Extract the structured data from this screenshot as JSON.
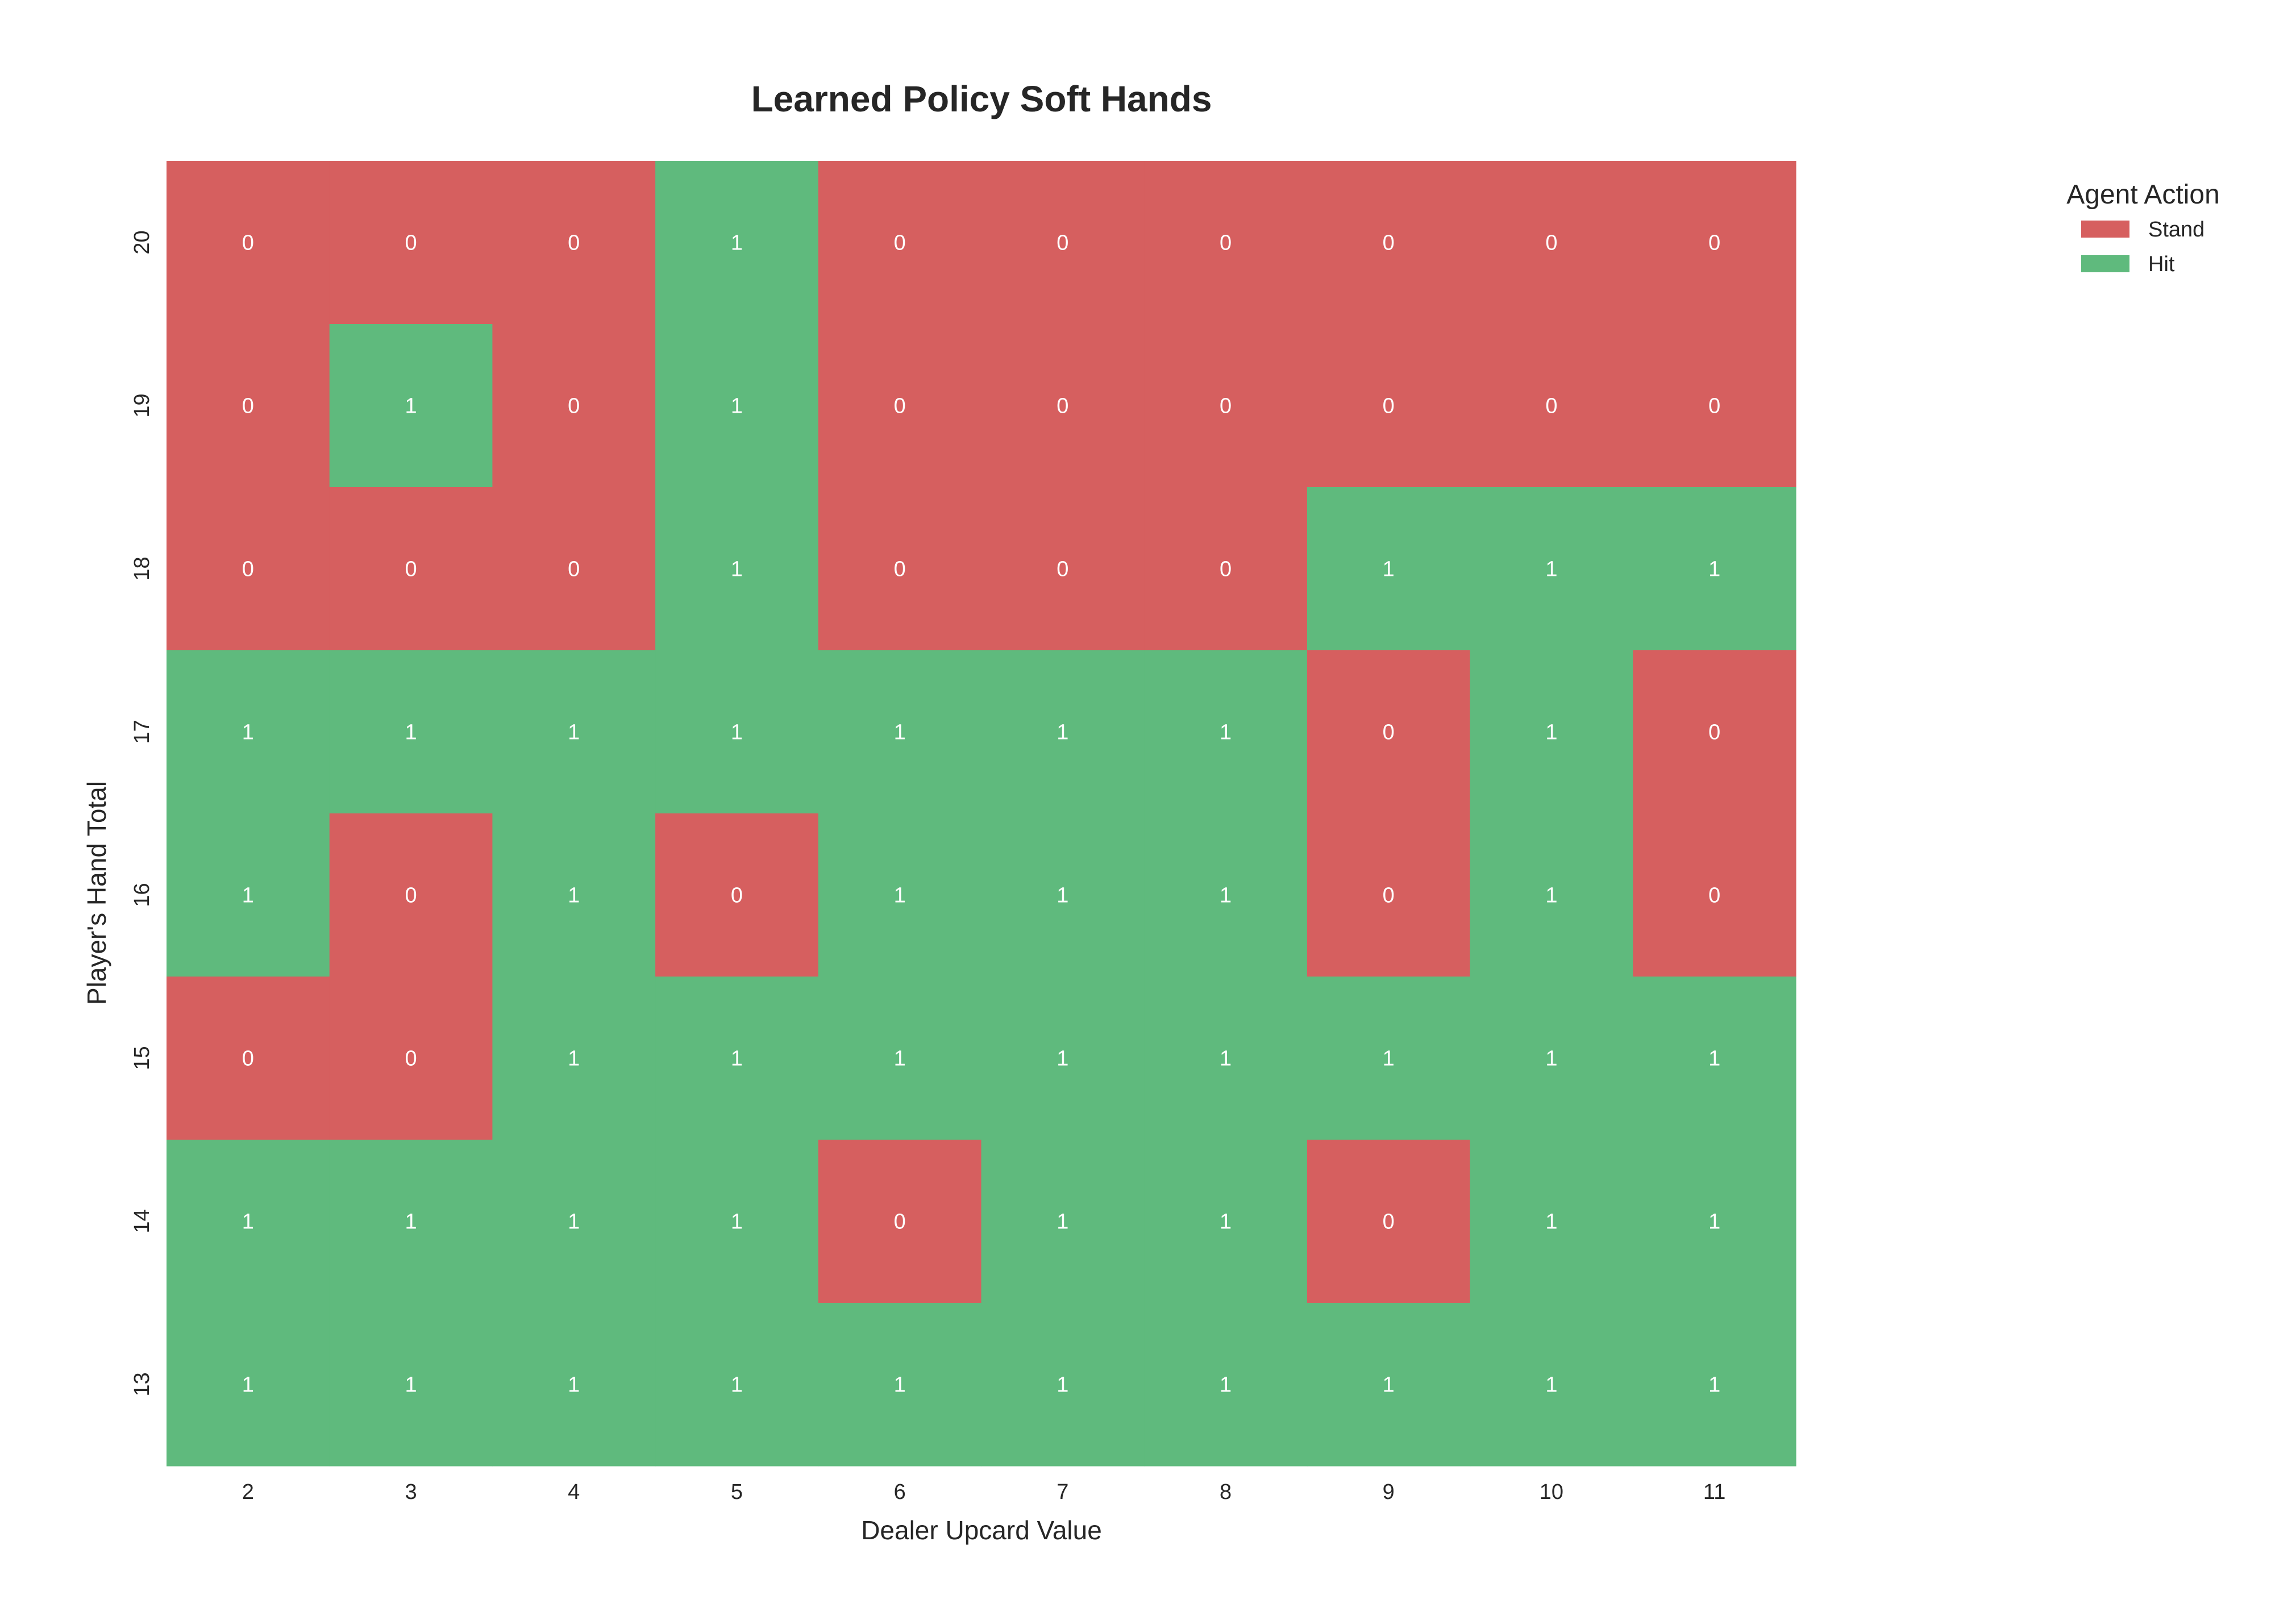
{
  "chart_data": {
    "type": "heatmap",
    "title": "Learned Policy Soft Hands",
    "xlabel": "Dealer Upcard Value",
    "ylabel": "Player's Hand Total",
    "x": [
      "2",
      "3",
      "4",
      "5",
      "6",
      "7",
      "8",
      "9",
      "10",
      "11"
    ],
    "y": [
      "20",
      "19",
      "18",
      "17",
      "16",
      "15",
      "14",
      "13"
    ],
    "values": [
      [
        0,
        0,
        0,
        1,
        0,
        0,
        0,
        0,
        0,
        0
      ],
      [
        0,
        1,
        0,
        1,
        0,
        0,
        0,
        0,
        0,
        0
      ],
      [
        0,
        0,
        0,
        1,
        0,
        0,
        0,
        1,
        1,
        1
      ],
      [
        1,
        1,
        1,
        1,
        1,
        1,
        1,
        0,
        1,
        0
      ],
      [
        1,
        0,
        1,
        0,
        1,
        1,
        1,
        0,
        1,
        0
      ],
      [
        0,
        0,
        1,
        1,
        1,
        1,
        1,
        1,
        1,
        1
      ],
      [
        1,
        1,
        1,
        1,
        0,
        1,
        1,
        0,
        1,
        1
      ],
      [
        1,
        1,
        1,
        1,
        1,
        1,
        1,
        1,
        1,
        1
      ]
    ],
    "legend": {
      "title": "Agent Action",
      "placement": "right",
      "entries": [
        {
          "label": "Stand",
          "value": 0,
          "color": "#d65f5f"
        },
        {
          "label": "Hit",
          "value": 1,
          "color": "#5fba7d"
        }
      ]
    },
    "grid": false
  }
}
